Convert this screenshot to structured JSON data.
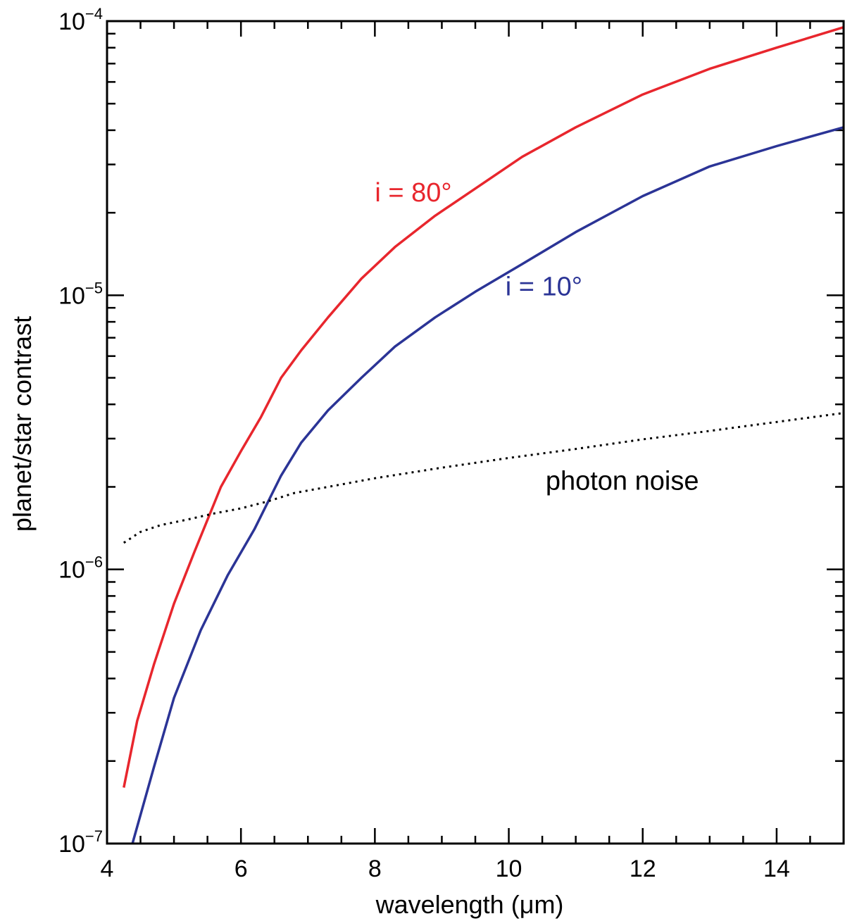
{
  "chart_data": {
    "type": "line",
    "title": "",
    "xlabel": "wavelength (μm)",
    "ylabel": "planet/star contrast",
    "xscale": "linear",
    "yscale": "log",
    "xlim": [
      4,
      15
    ],
    "ylim": [
      1e-07,
      0.0001
    ],
    "grid": false,
    "x_ticks": [
      4,
      6,
      8,
      10,
      12,
      14
    ],
    "x_tick_labels": [
      "4",
      "6",
      "8",
      "10",
      "12",
      "14"
    ],
    "y_ticks": [
      {
        "value": 1e-07,
        "base": "10",
        "exp": "−7"
      },
      {
        "value": 1e-06,
        "base": "10",
        "exp": "−6"
      },
      {
        "value": 1e-05,
        "base": "10",
        "exp": "−5"
      },
      {
        "value": 0.0001,
        "base": "10",
        "exp": "−4"
      }
    ],
    "series": [
      {
        "name": "i = 80°",
        "color": "#e8262d",
        "style": "solid",
        "x": [
          4.25,
          4.45,
          4.7,
          5.0,
          5.3,
          5.7,
          6.0,
          6.3,
          6.6,
          6.9,
          7.3,
          7.8,
          8.3,
          8.9,
          9.5,
          10.2,
          11.0,
          12.0,
          13.0,
          14.0,
          15.0
        ],
        "y": [
          1.6e-07,
          2.8e-07,
          4.5e-07,
          7.5e-07,
          1.15e-06,
          2e-06,
          2.7e-06,
          3.6e-06,
          5e-06,
          6.3e-06,
          8.3e-06,
          1.15e-05,
          1.5e-05,
          1.95e-05,
          2.45e-05,
          3.2e-05,
          4.1e-05,
          5.4e-05,
          6.7e-05,
          8e-05,
          9.5e-05
        ]
      },
      {
        "name": "i = 10°",
        "color": "#2b3496",
        "style": "solid",
        "x": [
          4.38,
          4.7,
          5.0,
          5.4,
          5.8,
          6.2,
          6.6,
          6.9,
          7.3,
          7.8,
          8.3,
          8.9,
          9.5,
          10.2,
          11.0,
          12.0,
          13.0,
          14.0,
          15.0
        ],
        "y": [
          1e-07,
          1.9e-07,
          3.4e-07,
          6e-07,
          9.5e-07,
          1.4e-06,
          2.2e-06,
          2.9e-06,
          3.8e-06,
          5e-06,
          6.5e-06,
          8.3e-06,
          1.03e-05,
          1.3e-05,
          1.7e-05,
          2.3e-05,
          2.95e-05,
          3.5e-05,
          4.1e-05
        ]
      },
      {
        "name": "photon noise",
        "color": "#000000",
        "style": "dotted",
        "x": [
          4.25,
          4.5,
          4.8,
          5.2,
          5.6,
          6.0,
          6.4,
          6.8,
          7.3,
          8.0,
          9.0,
          10.0,
          11.0,
          12.0,
          13.0,
          14.0,
          15.0
        ],
        "y": [
          1.25e-06,
          1.37e-06,
          1.45e-06,
          1.52e-06,
          1.6e-06,
          1.67e-06,
          1.77e-06,
          1.9e-06,
          2e-06,
          2.15e-06,
          2.35e-06,
          2.55e-06,
          2.75e-06,
          2.98e-06,
          3.2e-06,
          3.45e-06,
          3.72e-06
        ]
      }
    ],
    "annotations": [
      {
        "text": "i = 80°",
        "x": 8.0,
        "y": 2.2e-05,
        "color": "#e8262d"
      },
      {
        "text": "i = 10°",
        "x": 9.95,
        "y": 1e-05,
        "color": "#2b3496"
      },
      {
        "text": "photon noise",
        "x": 10.55,
        "y": 1.95e-06,
        "color": "#000000"
      }
    ]
  }
}
